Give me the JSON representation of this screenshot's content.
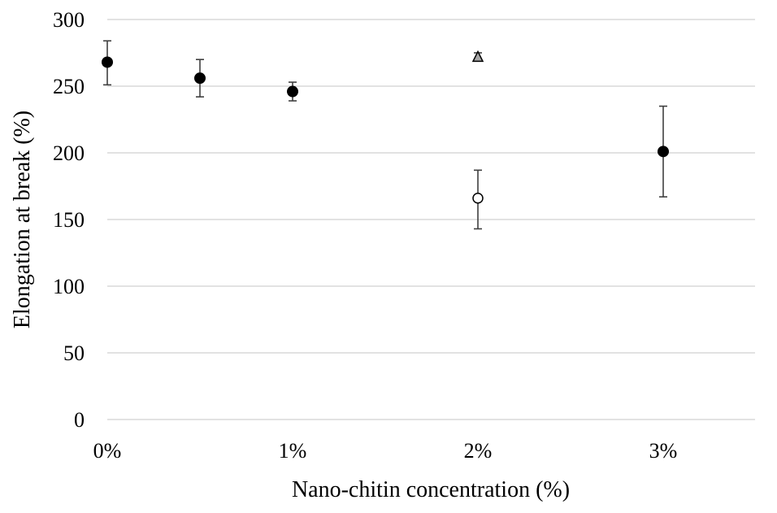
{
  "chart_data": {
    "type": "scatter",
    "title": "",
    "xlabel": "Nano-chitin concentration (%)",
    "ylabel": "Elongation at break (%)",
    "xlim": [
      0,
      3.5
    ],
    "ylim": [
      0,
      300
    ],
    "x_ticks": [
      {
        "value": 0,
        "label": "0%"
      },
      {
        "value": 1,
        "label": "1%"
      },
      {
        "value": 2,
        "label": "2%"
      },
      {
        "value": 3,
        "label": "3%"
      }
    ],
    "y_ticks": [
      0,
      50,
      100,
      150,
      200,
      250,
      300
    ],
    "grid": "horizontal",
    "series": [
      {
        "marker": "filled-circle",
        "color": "#000000",
        "points": [
          {
            "x": 0,
            "y": 268,
            "err_low": 251,
            "err_high": 284
          },
          {
            "x": 0.5,
            "y": 256,
            "err_low": 242,
            "err_high": 270
          },
          {
            "x": 1,
            "y": 246,
            "err_low": 239,
            "err_high": 253
          },
          {
            "x": 3,
            "y": 201,
            "err_low": 167,
            "err_high": 235
          }
        ]
      },
      {
        "marker": "open-circle",
        "color": "#000000",
        "points": [
          {
            "x": 2,
            "y": 166,
            "err_low": 143,
            "err_high": 187
          }
        ]
      },
      {
        "marker": "triangle",
        "color": "#a6a6a6",
        "points": [
          {
            "x": 2,
            "y": 272,
            "err_low": 269,
            "err_high": 275
          }
        ]
      }
    ]
  }
}
